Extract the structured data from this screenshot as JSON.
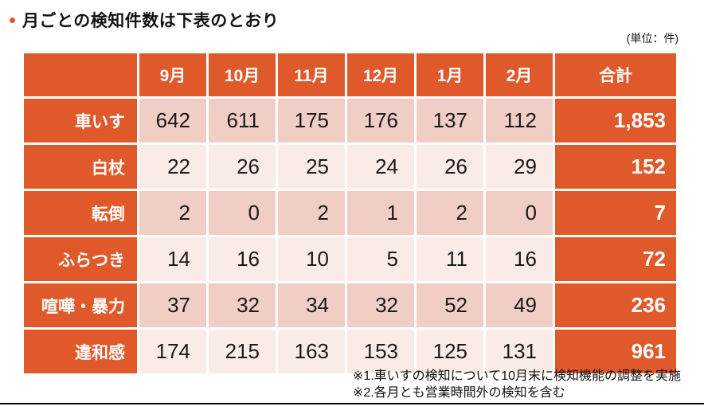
{
  "page": {
    "title": "月ごとの検知件数は下表のとおり",
    "unit_note": "(単位：件)",
    "footnotes": [
      "※1.車いすの検知について10月末に検知機能の調整を実施",
      "※2.各月とも営業時間外の検知を含む"
    ]
  },
  "chart_data": {
    "type": "table",
    "title": "月ごとの検知件数は下表のとおり",
    "unit": "件",
    "columns": [
      "9月",
      "10月",
      "11月",
      "12月",
      "1月",
      "2月",
      "合計"
    ],
    "rows": [
      {
        "label": "車いす",
        "values": [
          "642",
          "611",
          "175",
          "176",
          "137",
          "112"
        ],
        "total": "1,853"
      },
      {
        "label": "白杖",
        "values": [
          "22",
          "26",
          "25",
          "24",
          "26",
          "29"
        ],
        "total": "152"
      },
      {
        "label": "転倒",
        "values": [
          "2",
          "0",
          "2",
          "1",
          "2",
          "0"
        ],
        "total": "7"
      },
      {
        "label": "ふらつき",
        "values": [
          "14",
          "16",
          "10",
          "5",
          "11",
          "16"
        ],
        "total": "72"
      },
      {
        "label": "喧嘩・暴力",
        "values": [
          "37",
          "32",
          "34",
          "32",
          "52",
          "49"
        ],
        "total": "236"
      },
      {
        "label": "違和感",
        "values": [
          "174",
          "215",
          "163",
          "153",
          "125",
          "131"
        ],
        "total": "961"
      }
    ]
  },
  "colors": {
    "accent_orange": "#E0592B",
    "row_band_dark": "#F0CDC5",
    "row_band_light": "#FBEBE7",
    "text_dark": "#1A1A1A"
  }
}
